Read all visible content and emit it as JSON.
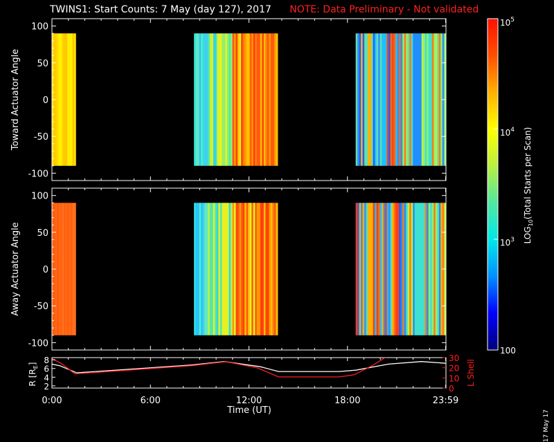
{
  "title": {
    "main": "TWINS1: Start Counts:  7 May (day 127), 2017",
    "note": "NOTE: Data Preliminary - Not validated",
    "note_color": "#ff2020"
  },
  "footer_date": "17 May 17",
  "chart_data": [
    {
      "type": "heatmap",
      "name": "toward",
      "ylabel": "Toward Actuator Angle",
      "ylim": [
        -110,
        110
      ],
      "yticks": [
        100,
        50,
        0,
        -50,
        -100
      ],
      "xlim": [
        0,
        24
      ],
      "data_ylim": [
        -90,
        90
      ],
      "blocks": [
        {
          "start": 0.0,
          "end": 1.45,
          "profile": "yellow"
        },
        {
          "start": 8.65,
          "end": 13.75,
          "profile": "cyan_to_orange"
        },
        {
          "start": 18.5,
          "end": 23.99,
          "profile": "mixed_blue"
        }
      ]
    },
    {
      "type": "heatmap",
      "name": "away",
      "ylabel": "Away Actuator Angle",
      "ylim": [
        -110,
        110
      ],
      "yticks": [
        100,
        50,
        0,
        -50,
        -100
      ],
      "xlim": [
        0,
        24
      ],
      "data_ylim": [
        -90,
        90
      ],
      "blocks": [
        {
          "start": 0.0,
          "end": 1.45,
          "profile": "orange"
        },
        {
          "start": 8.65,
          "end": 13.75,
          "profile": "cyan_to_orange"
        },
        {
          "start": 18.5,
          "end": 23.99,
          "profile": "mixed_blue"
        }
      ]
    },
    {
      "type": "line",
      "name": "orbit",
      "ylabel_left": "R [R",
      "ylabel_left_sub": "E",
      "ylabel_left_close": "]",
      "ylabel_right": "L Shell",
      "ylim_left": [
        1.5,
        8.5
      ],
      "ylim_right": [
        0,
        30
      ],
      "yticks_left": [
        2,
        4,
        6,
        8
      ],
      "yticks_right": [
        0,
        10,
        20,
        30
      ],
      "x_ticks": [
        0,
        6,
        12,
        18,
        23.98
      ],
      "x_tick_labels": [
        "0:00",
        "6:00",
        "12:00",
        "18:00",
        "23:59"
      ],
      "xlabel": "Time (UT)",
      "series": [
        {
          "axis": "left",
          "color": "#ffffff",
          "x": [
            0,
            0.5,
            1.5,
            8.5,
            10.5,
            12.7,
            13.8,
            17.5,
            18.5,
            20.5,
            22.5,
            24
          ],
          "y": [
            7.0,
            6.6,
            5.0,
            6.8,
            7.6,
            6.4,
            5.3,
            5.3,
            5.6,
            7.0,
            7.6,
            7.2
          ]
        },
        {
          "axis": "right",
          "color": "#ff2020",
          "x": [
            0,
            0.6,
            1.4,
            8.5,
            10.6,
            12.5,
            13.8,
            17.5,
            18.4,
            19.5,
            20.5
          ],
          "y": [
            29,
            24,
            14,
            22,
            26,
            20,
            11,
            11,
            13,
            22,
            32
          ]
        }
      ]
    }
  ],
  "colorbar": {
    "label": "LOG",
    "label_sub": "10",
    "label_tail": "(Total Starts per Scan)",
    "tick_top_base": "10",
    "tick_top_exp": "5",
    "tick_mid_base": "10",
    "tick_mid_exp": "4",
    "tick_low_base": "10",
    "tick_low_exp": "3",
    "tick_bottom": "100",
    "stops": [
      "#00007a",
      "#0000ff",
      "#0090ff",
      "#00e8e8",
      "#50e8a0",
      "#b8f040",
      "#ffff00",
      "#ffb000",
      "#ff5000",
      "#ff1000"
    ]
  }
}
